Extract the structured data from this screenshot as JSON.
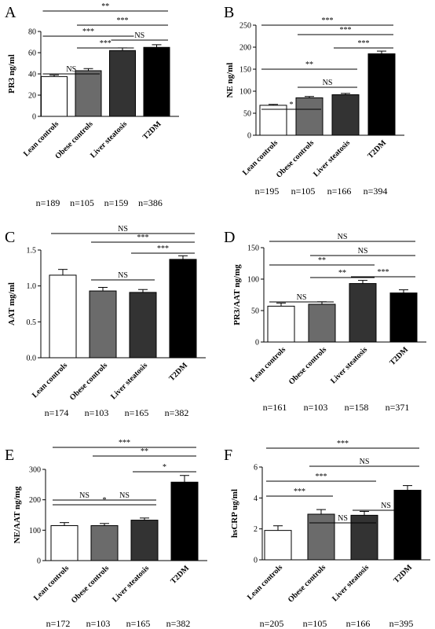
{
  "colors": {
    "bar_fills": [
      "#ffffff",
      "#6b6b6b",
      "#333333",
      "#000000"
    ],
    "stroke": "#000000"
  },
  "chart_data": [
    {
      "type": "bar",
      "panel": "A",
      "ylabel": "PR3 ng/ml",
      "ylim": [
        0,
        80
      ],
      "ticks": [
        0,
        20,
        40,
        60,
        80
      ],
      "categories": [
        "Lean controls",
        "Obese controls",
        "Liver steatosis",
        "T2DM"
      ],
      "values": [
        37.5,
        43,
        62,
        65
      ],
      "errors": [
        1.5,
        2,
        2.5,
        2.5
      ],
      "n_labels": [
        "n=189",
        "n=105",
        "n=159",
        "n=386"
      ],
      "comparisons": [
        {
          "from": 0,
          "to": 1,
          "label": "NS"
        },
        {
          "from": 2,
          "to": 3,
          "label": "NS"
        },
        {
          "from": 1,
          "to": 2,
          "label": "***"
        },
        {
          "from": 0,
          "to": 2,
          "label": "***"
        },
        {
          "from": 1,
          "to": 3,
          "label": "***"
        },
        {
          "from": 0,
          "to": 3,
          "label": "**"
        }
      ]
    },
    {
      "type": "bar",
      "panel": "B",
      "ylabel": "NE ng/ml",
      "ylim": [
        0,
        250
      ],
      "ticks": [
        0,
        50,
        100,
        150,
        200,
        250
      ],
      "categories": [
        "Lean controls",
        "Obese controls",
        "Liver steatosis",
        "T2DM"
      ],
      "values": [
        68,
        85,
        92,
        185
      ],
      "errors": [
        2,
        3,
        3,
        6
      ],
      "n_labels": [
        "n=195",
        "n=105",
        "n=166",
        "n=394"
      ],
      "comparisons": [
        {
          "from": 0,
          "to": 1,
          "label": "*"
        },
        {
          "from": 1,
          "to": 2,
          "label": "NS"
        },
        {
          "from": 0,
          "to": 2,
          "label": "**"
        },
        {
          "from": 2,
          "to": 3,
          "label": "***"
        },
        {
          "from": 1,
          "to": 3,
          "label": "***"
        },
        {
          "from": 0,
          "to": 3,
          "label": "***"
        }
      ]
    },
    {
      "type": "bar",
      "panel": "C",
      "ylabel": "AAT mg/ml",
      "ylim": [
        0,
        1.5
      ],
      "ticks": [
        0.0,
        0.5,
        1.0,
        1.5
      ],
      "tick_labels": [
        "0.0",
        "0.5",
        "1.0",
        "1.5"
      ],
      "categories": [
        "Lean controls",
        "Obese controls",
        "Liver steatosis",
        "T2DM"
      ],
      "values": [
        1.15,
        0.93,
        0.91,
        1.37
      ],
      "errors": [
        0.08,
        0.05,
        0.04,
        0.05
      ],
      "n_labels": [
        "n=174",
        "n=103",
        "n=165",
        "n=382"
      ],
      "comparisons": [
        {
          "from": 1,
          "to": 2,
          "label": "NS"
        },
        {
          "from": 2,
          "to": 3,
          "label": "***"
        },
        {
          "from": 1,
          "to": 3,
          "label": "***"
        },
        {
          "from": 0,
          "to": 3,
          "label": "NS"
        }
      ]
    },
    {
      "type": "bar",
      "panel": "D",
      "ylabel": "PR3/AAT ng/mg",
      "ylim": [
        0,
        150
      ],
      "ticks": [
        0,
        50,
        100,
        150
      ],
      "categories": [
        "Lean controls",
        "Obese controls",
        "Liver steatosis",
        "T2DM"
      ],
      "values": [
        57,
        60,
        93,
        78
      ],
      "errors": [
        5,
        4,
        5,
        5
      ],
      "n_labels": [
        "n=161",
        "n=103",
        "n=158",
        "n=371"
      ],
      "comparisons": [
        {
          "from": 0,
          "to": 1,
          "label": "NS"
        },
        {
          "from": 1,
          "to": 2,
          "label": "**"
        },
        {
          "from": 2,
          "to": 3,
          "label": "***"
        },
        {
          "from": 0,
          "to": 2,
          "label": "**"
        },
        {
          "from": 1,
          "to": 3,
          "label": "NS"
        },
        {
          "from": 0,
          "to": 3,
          "label": "NS"
        }
      ]
    },
    {
      "type": "bar",
      "panel": "E",
      "ylabel": "NE/AAT ng/mg",
      "ylim": [
        0,
        300
      ],
      "ticks": [
        0,
        100,
        200,
        300
      ],
      "categories": [
        "Lean controls",
        "Obese controls",
        "Liver steatosis",
        "T2DM"
      ],
      "values": [
        115,
        115,
        133,
        258
      ],
      "errors": [
        10,
        7,
        7,
        22
      ],
      "n_labels": [
        "n=172",
        "n=103",
        "n=165",
        "n=382"
      ],
      "comparisons": [
        {
          "from": 0,
          "to": 1,
          "label": "NS"
        },
        {
          "from": 1,
          "to": 2,
          "label": "NS"
        },
        {
          "from": 0,
          "to": 2,
          "label": "*"
        },
        {
          "from": 2,
          "to": 3,
          "label": "*"
        },
        {
          "from": 1,
          "to": 3,
          "label": "**"
        },
        {
          "from": 0,
          "to": 3,
          "label": "***"
        }
      ]
    },
    {
      "type": "bar",
      "panel": "F",
      "ylabel": "hsCRP ug/ml",
      "ylim": [
        0,
        6
      ],
      "ticks": [
        0,
        2,
        4,
        6
      ],
      "categories": [
        "Lean controls",
        "Obese controls",
        "Liver steatosis",
        "T2DM"
      ],
      "values": [
        1.9,
        2.95,
        2.88,
        4.5
      ],
      "errors": [
        0.3,
        0.3,
        0.25,
        0.3
      ],
      "n_labels": [
        "n=205",
        "n=105",
        "n=166",
        "n=395"
      ],
      "comparisons": [
        {
          "from": 1,
          "to": 2,
          "label": "NS"
        },
        {
          "from": 0,
          "to": 1,
          "label": "***"
        },
        {
          "from": 2,
          "to": 3,
          "label": "NS"
        },
        {
          "from": 0,
          "to": 2,
          "label": "***"
        },
        {
          "from": 1,
          "to": 3,
          "label": "NS"
        },
        {
          "from": 0,
          "to": 3,
          "label": "***"
        }
      ]
    }
  ]
}
